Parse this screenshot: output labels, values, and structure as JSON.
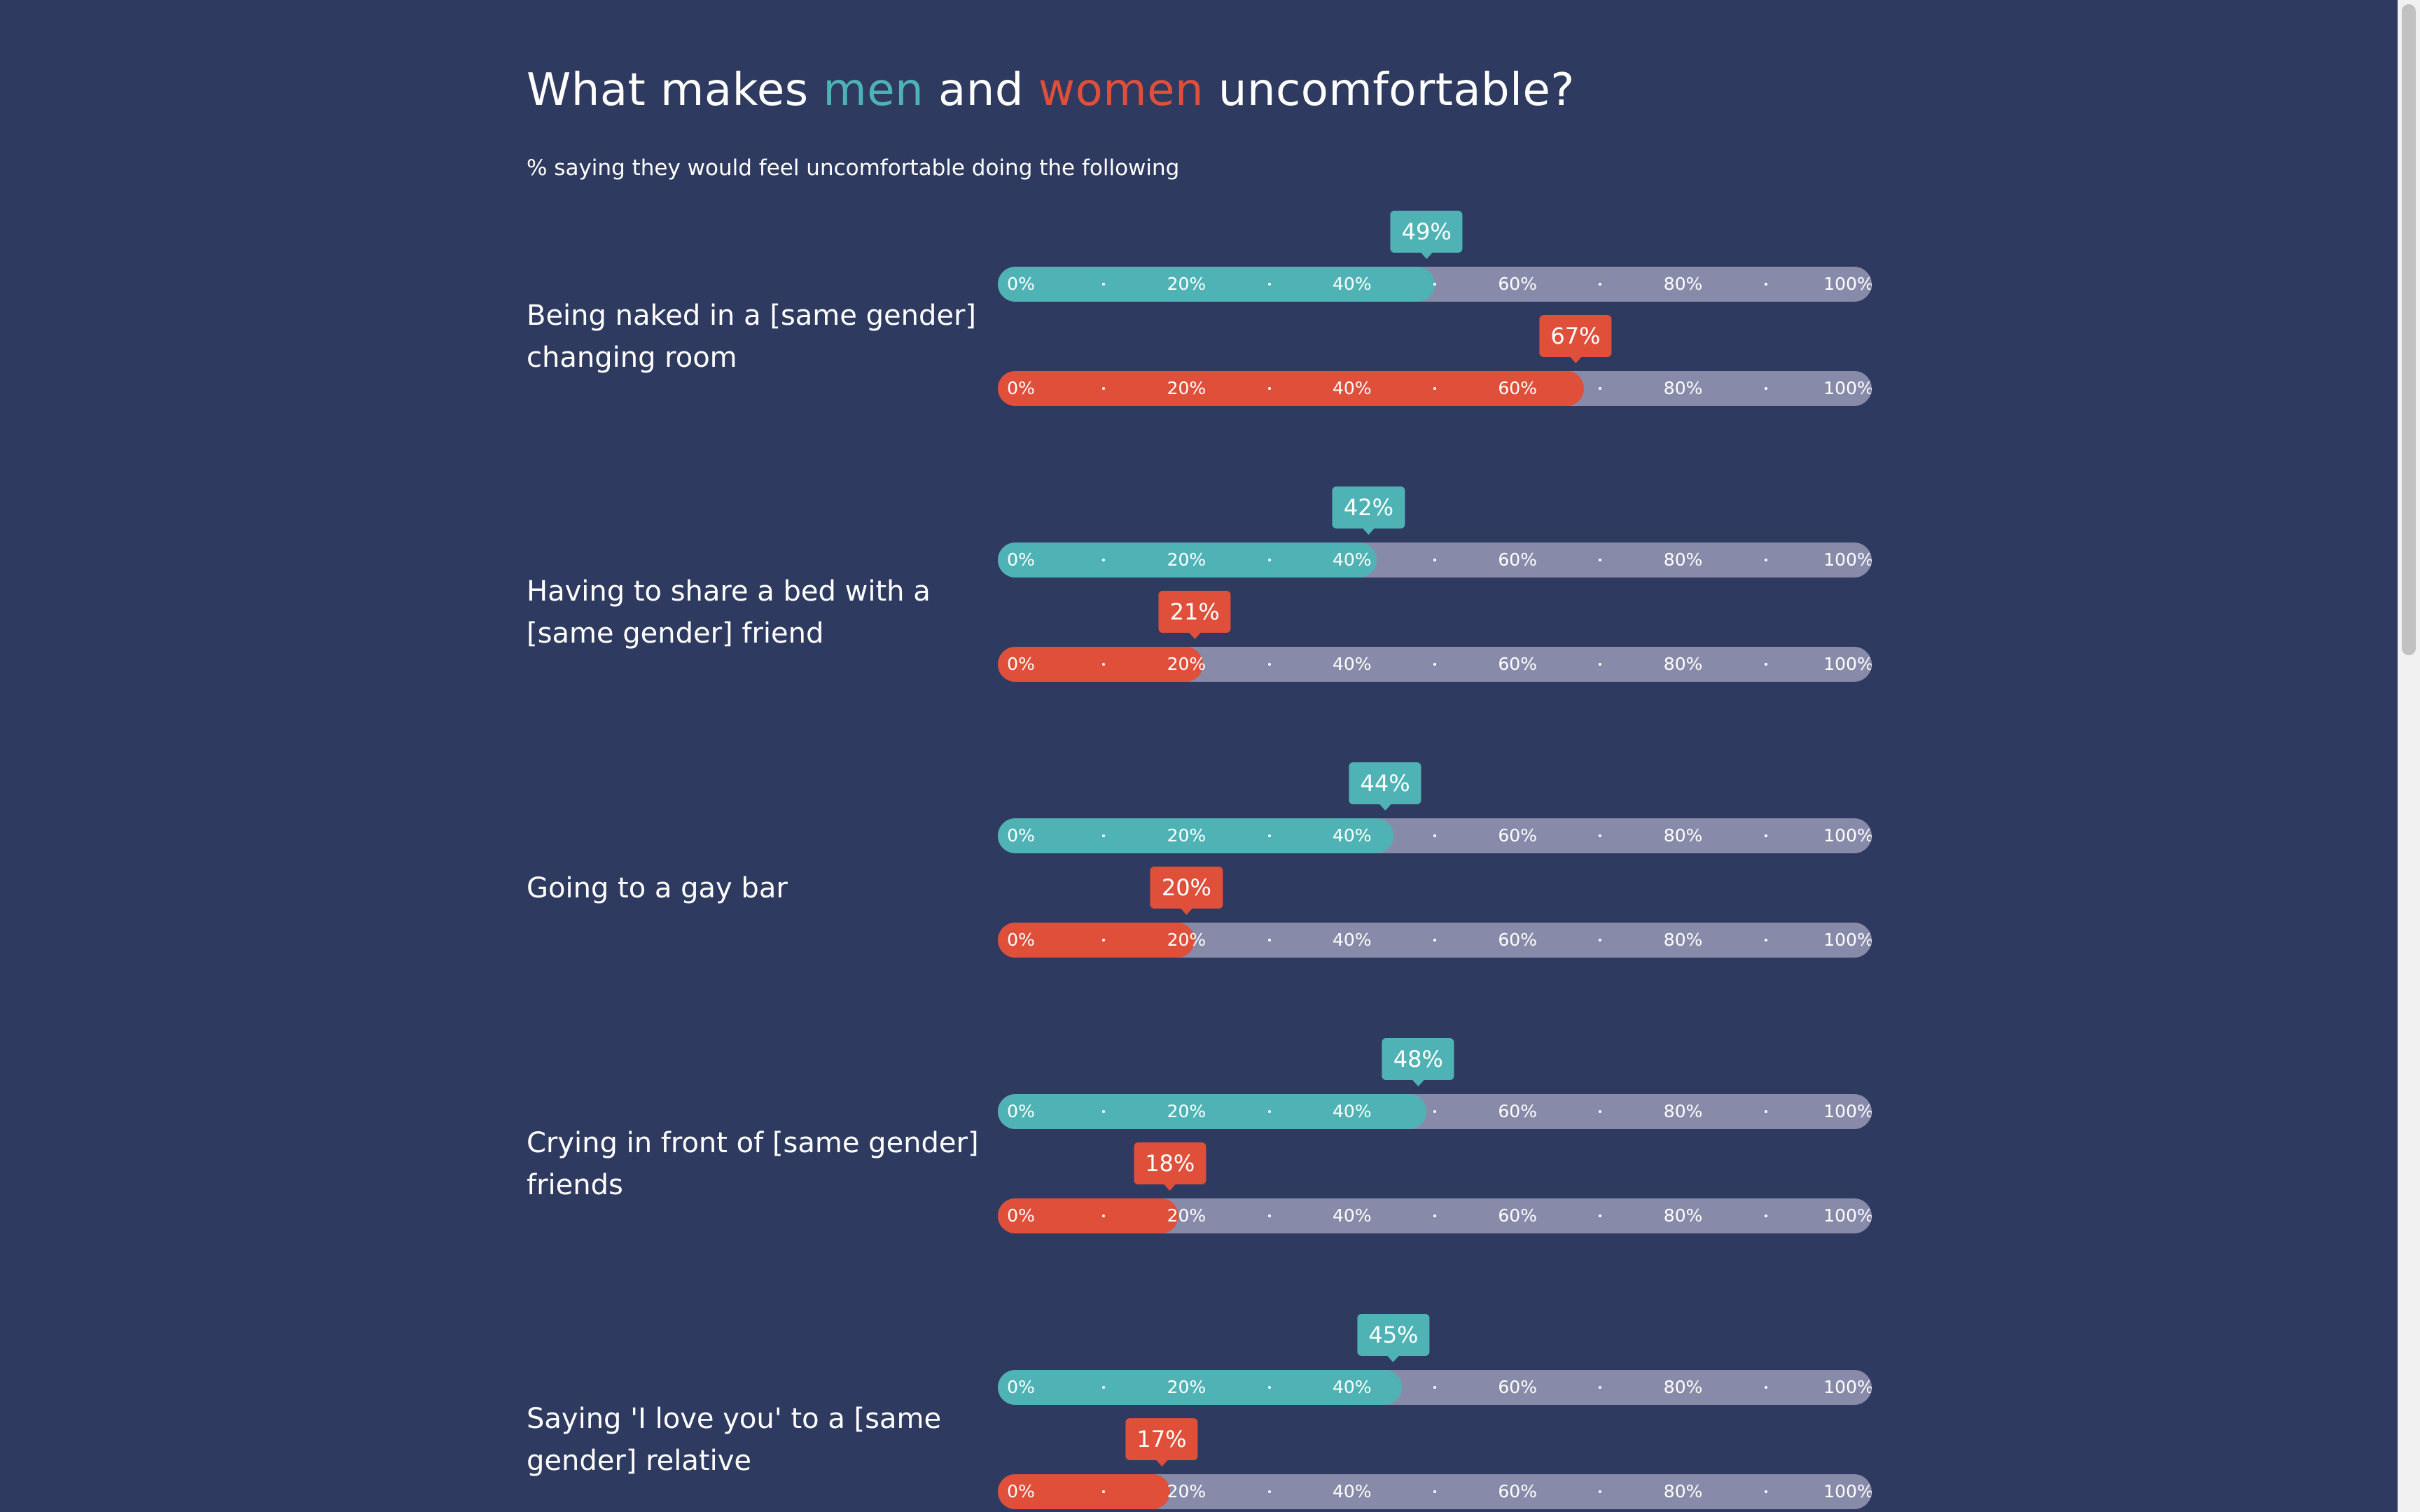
{
  "title": {
    "prefix": "What makes ",
    "men": "men",
    "middle": " and ",
    "women": "women",
    "suffix": " uncomfortable?"
  },
  "subtitle": "% saying they would feel uncomfortable doing the following",
  "colors": {
    "background": "#2e3a5f",
    "men": "#4fb3b6",
    "women": "#df4f3a",
    "track": "#878ba9"
  },
  "chart_data": {
    "type": "bar",
    "orientation": "horizontal",
    "categories": [
      "Being naked in a [same gender] changing room",
      "Having to share a bed with a [same gender] friend",
      "Going to a gay bar",
      "Crying in front of [same gender] friends",
      "Saying 'I love you' to a [same gender] relative"
    ],
    "series": [
      {
        "key": "men",
        "values": [
          49,
          42,
          44,
          48,
          45
        ],
        "labels": [
          "49%",
          "42%",
          "44%",
          "48%",
          "45%"
        ],
        "color": "#4fb3b6"
      },
      {
        "key": "women",
        "values": [
          67,
          21,
          20,
          18,
          17
        ],
        "labels": [
          "67%",
          "21%",
          "20%",
          "18%",
          "17%"
        ],
        "color": "#df4f3a"
      }
    ],
    "xlim": [
      0,
      100
    ],
    "ticks": [
      "0%",
      "20%",
      "40%",
      "60%",
      "80%",
      "100%"
    ],
    "grid": false
  }
}
